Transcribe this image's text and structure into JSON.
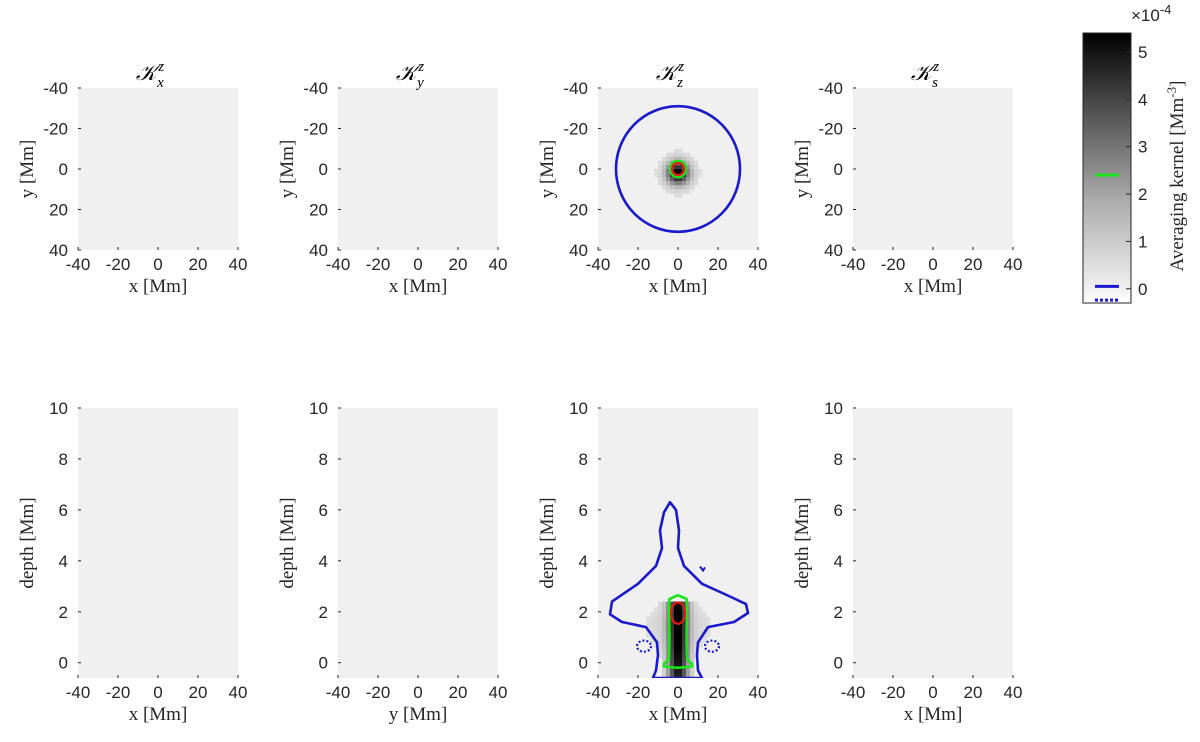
{
  "chart_data": {
    "type": "heatmap",
    "colormap": "gray (white = 0, black = max)",
    "panel_titles": [
      {
        "k": "𝒦",
        "sub": "x",
        "sup": "z"
      },
      {
        "k": "𝒦",
        "sub": "y",
        "sup": "z"
      },
      {
        "k": "𝒦",
        "sub": "z",
        "sup": "z"
      },
      {
        "k": "𝒦",
        "sub": "s",
        "sup": "z"
      }
    ],
    "top_row": {
      "xlabels": [
        "x [Mm]",
        "x [Mm]",
        "x [Mm]",
        "x [Mm]"
      ],
      "ylabel": "y [Mm]",
      "xlim": [
        -40,
        40
      ],
      "ylim": [
        -40,
        40
      ],
      "xticks": [
        "-40",
        "-20",
        "0",
        "20",
        "40"
      ],
      "yticks": [
        "-40",
        "-20",
        "0",
        "20",
        "40"
      ]
    },
    "bottom_row": {
      "xlabels": [
        "x [Mm]",
        "y [Mm]",
        "x [Mm]",
        "x [Mm]"
      ],
      "ylabel": "depth [Mm]",
      "xlim": [
        -40,
        40
      ],
      "ylim": [
        10,
        -0.6
      ],
      "xticks": [
        "-40",
        "-20",
        "0",
        "20",
        "40"
      ],
      "yticks": [
        "0",
        "2",
        "4",
        "6",
        "8",
        "10"
      ]
    },
    "colorbar": {
      "label": "Averaging kernel [Mm",
      "label_sup": "-3",
      "label_end": "]",
      "exponent_prefix": "×10",
      "exponent": "-4",
      "range": [
        -0.3,
        5.4
      ],
      "ticks": [
        "0",
        "1",
        "2",
        "3",
        "4",
        "5"
      ]
    },
    "contours": {
      "green": {
        "color": "#19e619",
        "level": 2.4
      },
      "blue": {
        "color": "#1a1acc",
        "level": 0.05
      },
      "blue_dotted": {
        "color": "#1a1acc",
        "level": -0.3
      },
      "red": {
        "color": "#e61919"
      }
    },
    "kzz_horizontal": {
      "peak": 5.4,
      "core_sigma_mm": 3.5,
      "blue_radius_mm": 31,
      "green_radius_mm": 4,
      "red_radius_mm": 3
    },
    "kzz_vertical": {
      "peak": 5.4,
      "red_center_depth_mm": 1.95,
      "red_radius_mm": 3.5,
      "red_half_depth_mm": 0.42,
      "blue_outline": [
        [
          -12.5,
          -0.6
        ],
        [
          -11,
          -0.3
        ],
        [
          -10,
          0.3
        ],
        [
          -10.5,
          0.8
        ],
        [
          -16,
          1.4
        ],
        [
          -28,
          1.6
        ],
        [
          -34,
          1.9
        ],
        [
          -33,
          2.4
        ],
        [
          -20,
          3.1
        ],
        [
          -11,
          3.8
        ],
        [
          -8,
          4.5
        ],
        [
          -9,
          5.2
        ],
        [
          -7,
          5.9
        ],
        [
          -4,
          6.3
        ],
        [
          -1,
          6.0
        ],
        [
          0.5,
          5.2
        ],
        [
          0,
          4.5
        ],
        [
          3,
          3.8
        ],
        [
          12,
          3.1
        ],
        [
          26,
          2.6
        ],
        [
          34,
          2.3
        ],
        [
          35,
          1.95
        ],
        [
          28,
          1.6
        ],
        [
          15,
          1.4
        ],
        [
          10,
          0.8
        ],
        [
          9.5,
          0.3
        ],
        [
          10,
          -0.3
        ],
        [
          12,
          -0.6
        ]
      ],
      "green_outline": [
        [
          -7,
          -0.05
        ],
        [
          -4.5,
          0.15
        ],
        [
          -4.3,
          1.0
        ],
        [
          -4.5,
          2.0
        ],
        [
          -4.3,
          2.5
        ],
        [
          0,
          2.65
        ],
        [
          4.3,
          2.5
        ],
        [
          4.5,
          2.0
        ],
        [
          4.3,
          1.0
        ],
        [
          4.5,
          0.15
        ],
        [
          7,
          -0.05
        ],
        [
          7,
          -0.15
        ],
        [
          0,
          -0.2
        ],
        [
          -7,
          -0.15
        ]
      ],
      "dotted_near_surface": [
        {
          "cx": -17,
          "cy": 0.65,
          "rx": 3.5,
          "ry": 0.22
        },
        {
          "cx": 17,
          "cy": 0.65,
          "rx": 3.5,
          "ry": 0.22
        }
      ],
      "small_blue_mark": {
        "x": 12,
        "depth": 3.7
      }
    }
  }
}
